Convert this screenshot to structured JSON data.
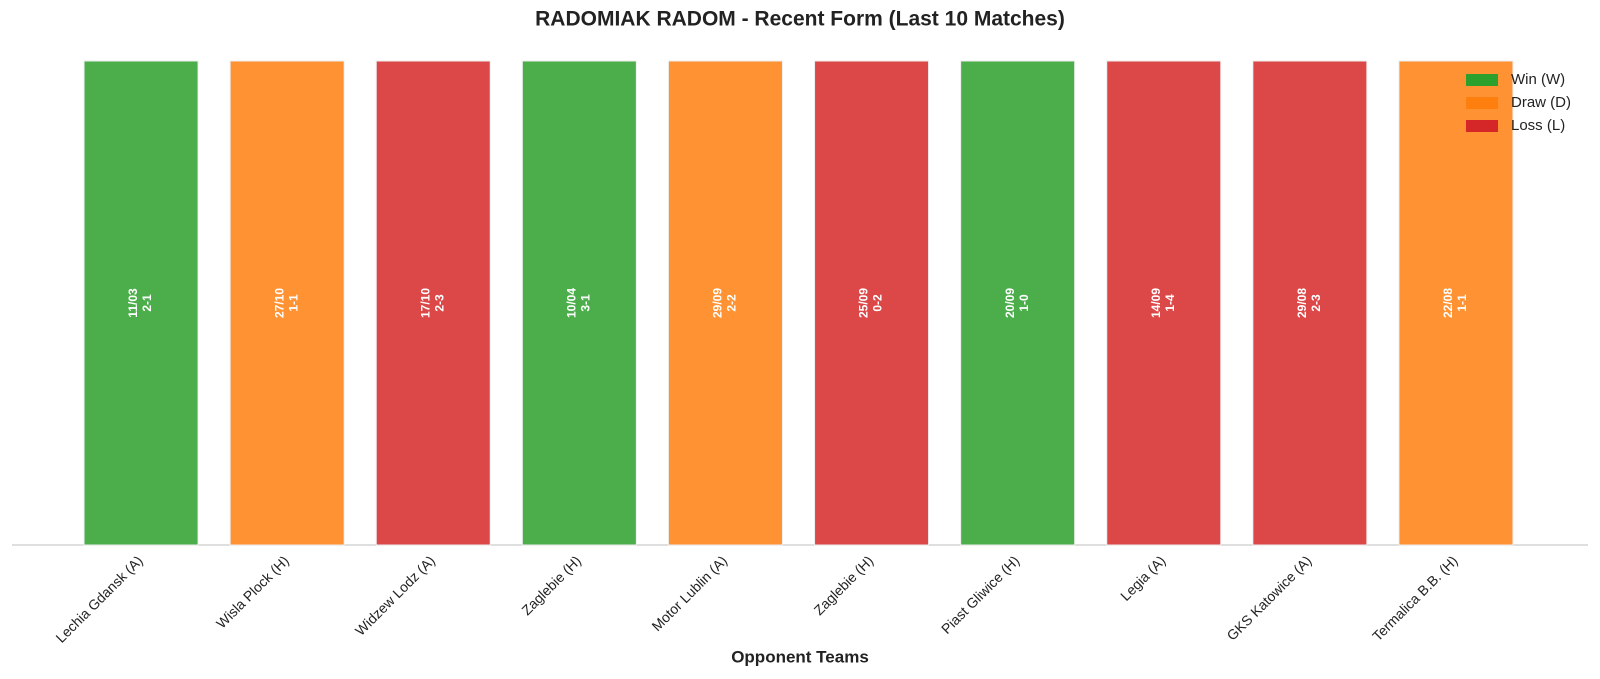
{
  "chart_data": {
    "type": "bar",
    "title": "RADOMIAK RADOM - Recent Form (Last 10 Matches)",
    "x_label": "Opponent Teams",
    "categories": [
      "Lechia Gdansk (A)",
      "Wisla Plock (H)",
      "Widzew Lodz (A)",
      "Zaglebie (H)",
      "Motor Lublin (A)",
      "Zaglebie (H)",
      "Piast Gliwice (H)",
      "Legia (A)",
      "GKS Katowice (A)",
      "Termalica B.B. (H)"
    ],
    "match_dates": [
      "11/03",
      "27/10",
      "17/10",
      "10/04",
      "29/09",
      "25/09",
      "20/09",
      "14/09",
      "29/08",
      "22/08"
    ],
    "scores": [
      "2-1",
      "1-1",
      "2-3",
      "3-1",
      "2-2",
      "0-2",
      "1-0",
      "1-4",
      "2-3",
      "1-1"
    ],
    "series": [
      {
        "name": "Win (W)",
        "color": "#2ca02c",
        "values": [
          1,
          null,
          null,
          1,
          null,
          null,
          1,
          null,
          null,
          null
        ]
      },
      {
        "name": "Draw (D)",
        "color": "#ff7f0e",
        "values": [
          null,
          1,
          null,
          null,
          1,
          null,
          null,
          null,
          null,
          1
        ]
      },
      {
        "name": "Loss (L)",
        "color": "#d62728",
        "values": [
          null,
          null,
          1,
          null,
          null,
          1,
          null,
          1,
          1,
          null
        ]
      }
    ],
    "ylim": [
      0,
      1
    ],
    "legend": "upper right"
  }
}
